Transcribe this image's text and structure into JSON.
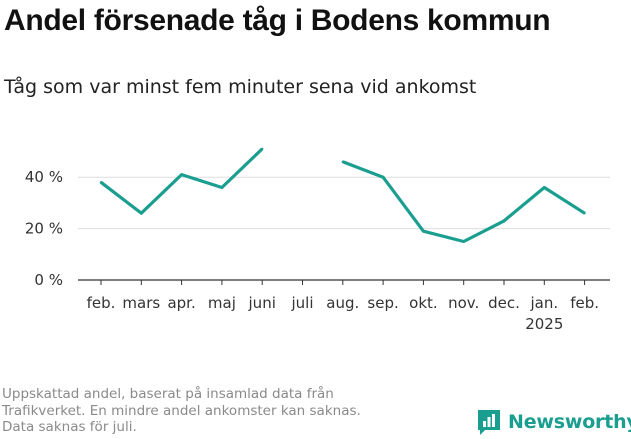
{
  "title": "Andel försenade tåg i Bodens kommun",
  "subtitle": "Tåg som var minst fem minuter sena vid ankomst",
  "footnote": {
    "lines": [
      "Uppskattad andel, baserat på insamlad data från",
      "Trafikverket. En mindre andel ankomster kan saknas.",
      "Data saknas för juli."
    ]
  },
  "brand": {
    "name": "Newsworthy",
    "icon": "bar-chart-logo-icon"
  },
  "colors": {
    "line": "#1a9e8f",
    "grid": "#dddddd",
    "axis": "#333333",
    "text": "#333333"
  },
  "chart_data": {
    "type": "line",
    "categories": [
      "feb.",
      "mars",
      "apr.",
      "maj",
      "juni",
      "juli",
      "aug.",
      "sep.",
      "okt.",
      "nov.",
      "dec.",
      "jan.",
      "feb."
    ],
    "year_label": {
      "index": 11,
      "text": "2025"
    },
    "series": [
      {
        "values": [
          38,
          26,
          41,
          36,
          51,
          null,
          46,
          40,
          19,
          15,
          23,
          36,
          26
        ]
      }
    ],
    "ylim": [
      0,
      52
    ],
    "yticks": [
      0,
      20,
      40
    ],
    "ytick_labels": [
      "0 %",
      "20 %",
      "40 %"
    ],
    "grid": true
  }
}
